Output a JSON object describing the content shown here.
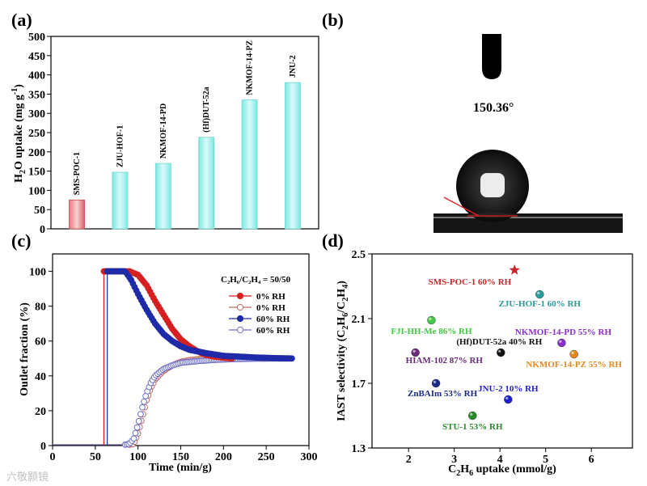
{
  "panels": {
    "a": "(a)",
    "b": "(b)",
    "c": "(c)",
    "d": "(d)"
  },
  "watermark": "六敬颢镜",
  "colors": {
    "bar_highlight": "#e8787a",
    "bar_other": "#9ff2ee",
    "red_series": "#d42020",
    "blue_series": "#1f2aa8",
    "pink_series": "#c26a6a",
    "lavender_series": "#6e70c2"
  },
  "chart_data": [
    {
      "id": "a",
      "type": "bar",
      "ylabel_main": "H",
      "ylabel_sub1": "2",
      "ylabel_mid": "O uptake (mg g",
      "ylabel_sup": "-1",
      "ylabel_end": ")",
      "ylim": [
        0,
        500
      ],
      "yticks": [
        "0",
        "50",
        "100",
        "150",
        "200",
        "250",
        "300",
        "350",
        "400",
        "450",
        "500"
      ],
      "categories": [
        "SMS-POC-1",
        "ZJU-HOF-1",
        "NKMOF-14-PD",
        "(Hf)DUT-52a",
        "NKMOF-14-PZ",
        "JNU-2"
      ],
      "values": [
        75,
        147,
        170,
        238,
        335,
        380
      ],
      "highlight_index": 0
    },
    {
      "id": "b",
      "type": "image",
      "contact_angle": "150.36°"
    },
    {
      "id": "c",
      "type": "line",
      "xlabel": "Time (min/g)",
      "ylabel": "Outlet fraction (%)",
      "xlim": [
        0,
        300
      ],
      "ylim": [
        0,
        110
      ],
      "xticks": [
        "0",
        "50",
        "100",
        "150",
        "200",
        "250",
        "300"
      ],
      "yticks": [
        "0",
        "20",
        "40",
        "60",
        "80",
        "100"
      ],
      "legend_title": "C₂H₆/C₂H₄ = 50/50",
      "legend_position": "top-right",
      "series": [
        {
          "name": "0% RH",
          "filled": true,
          "color": "#d42020",
          "breakthrough": 60,
          "points": [
            [
              60,
              100
            ],
            [
              90,
              100
            ],
            [
              100,
              98
            ],
            [
              110,
              92
            ],
            [
              120,
              83
            ],
            [
              130,
              75
            ],
            [
              140,
              67
            ],
            [
              150,
              61
            ],
            [
              160,
              57
            ],
            [
              170,
              54
            ],
            [
              180,
              52
            ],
            [
              190,
              51
            ],
            [
              200,
              50.5
            ],
            [
              210,
              50
            ]
          ]
        },
        {
          "name": "0% RH",
          "filled": false,
          "color": "#c26a6a",
          "breakthrough": 95,
          "points": [
            [
              0,
              0.5
            ],
            [
              90,
              0.5
            ],
            [
              95,
              1
            ],
            [
              100,
              7
            ],
            [
              105,
              16
            ],
            [
              110,
              26
            ],
            [
              115,
              33
            ],
            [
              120,
              38
            ],
            [
              130,
              43
            ],
            [
              140,
              46
            ],
            [
              150,
              48
            ],
            [
              160,
              49
            ],
            [
              175,
              49.8
            ],
            [
              190,
              50
            ]
          ]
        },
        {
          "name": "60% RH",
          "filled": true,
          "color": "#1f2aa8",
          "breakthrough": 64,
          "points": [
            [
              64,
              100
            ],
            [
              85,
              100
            ],
            [
              92,
              95
            ],
            [
              100,
              87
            ],
            [
              110,
              78
            ],
            [
              120,
              70
            ],
            [
              130,
              64
            ],
            [
              140,
              60
            ],
            [
              150,
              57
            ],
            [
              160,
              55
            ],
            [
              180,
              53
            ],
            [
              200,
              51.5
            ],
            [
              220,
              51
            ],
            [
              240,
              50.5
            ],
            [
              260,
              50.2
            ],
            [
              280,
              50
            ]
          ]
        },
        {
          "name": "60% RH",
          "filled": false,
          "color": "#6e70c2",
          "breakthrough": 90,
          "points": [
            [
              0,
              0.5
            ],
            [
              85,
              0.5
            ],
            [
              90,
              1
            ],
            [
              95,
              4
            ],
            [
              100,
              12
            ],
            [
              105,
              22
            ],
            [
              110,
              30
            ],
            [
              115,
              36
            ],
            [
              120,
              40
            ],
            [
              130,
              44
            ],
            [
              140,
              46
            ],
            [
              150,
              47.5
            ],
            [
              170,
              48.5
            ],
            [
              190,
              49.2
            ],
            [
              210,
              49.6
            ],
            [
              240,
              49.9
            ],
            [
              280,
              50
            ]
          ]
        }
      ]
    },
    {
      "id": "d",
      "type": "scatter",
      "xlabel_main": "C",
      "xlabel_sub1": "2",
      "xlabel_mid": "H",
      "xlabel_sub2": "6",
      "xlabel_end": " uptake (mmol/g)",
      "ylabel_main": "IAST selectivity (C",
      "ylabel_sub1": "2",
      "ylabel_mid1": "H",
      "ylabel_sub2": "6",
      "ylabel_mid2": "/C",
      "ylabel_sub3": "2",
      "ylabel_mid3": "H",
      "ylabel_sub4": "4",
      "ylabel_end": ")",
      "xlim": [
        1.2,
        6.9
      ],
      "ylim": [
        1.3,
        2.5
      ],
      "xticks": [
        "2",
        "3",
        "4",
        "5",
        "6"
      ],
      "yticks": [
        "1.3",
        "1.7",
        "2.1",
        "2.5"
      ],
      "points": [
        {
          "label": "SMS-POC-1  60% RH",
          "x": 4.32,
          "y": 2.4,
          "color": "#c8282d",
          "marker": "star"
        },
        {
          "label": "ZJU-HOF-1 60% RH",
          "x": 4.87,
          "y": 2.25,
          "color": "#2a9a9a",
          "marker": "circle"
        },
        {
          "label": "FJI-HH-Me 86% RH",
          "x": 2.5,
          "y": 2.09,
          "color": "#45c845",
          "marker": "circle"
        },
        {
          "label": "NKMOF-14-PD  55% RH",
          "x": 5.35,
          "y": 1.95,
          "color": "#8a2fc8",
          "marker": "circle"
        },
        {
          "label": "(Hf)DUT-52a  40% RH",
          "x": 4.02,
          "y": 1.89,
          "color": "#111111",
          "marker": "circle"
        },
        {
          "label": "HIAM-102 87% RH",
          "x": 2.15,
          "y": 1.89,
          "color": "#6a2a7a",
          "marker": "circle"
        },
        {
          "label": "NKMOF-14-PZ  55% RH",
          "x": 5.62,
          "y": 1.88,
          "color": "#e08a20",
          "marker": "circle"
        },
        {
          "label": "ZnBAIm 53% RH",
          "x": 2.6,
          "y": 1.7,
          "color": "#1a2a8a",
          "marker": "circle"
        },
        {
          "label": "JNU-2 10% RH",
          "x": 4.18,
          "y": 1.6,
          "color": "#2020c8",
          "marker": "circle"
        },
        {
          "label": "STU-1 53% RH",
          "x": 3.4,
          "y": 1.5,
          "color": "#2a8a2a",
          "marker": "circle"
        }
      ]
    }
  ]
}
